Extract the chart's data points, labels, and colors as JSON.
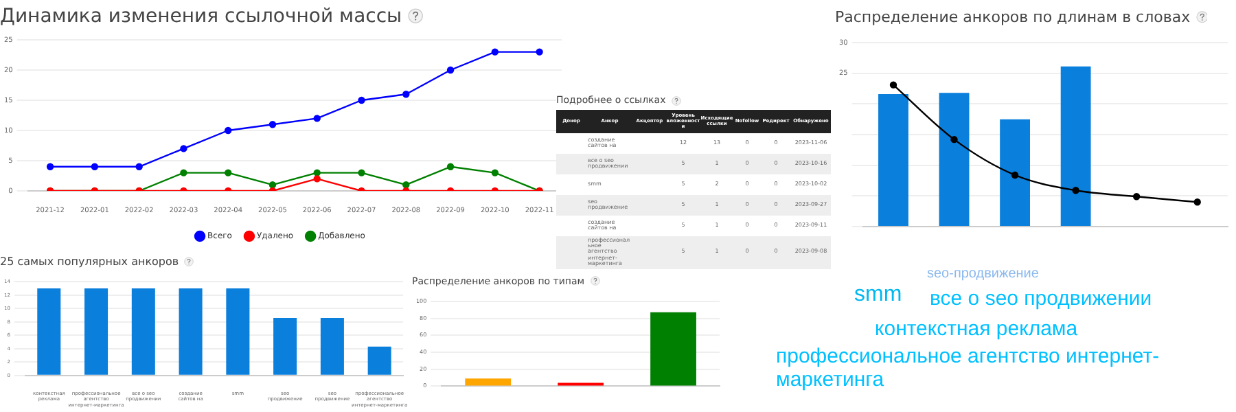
{
  "chart_data": [
    {
      "type": "line",
      "title": "Динамика изменения ссылочной массы",
      "categories": [
        "2021-12",
        "2022-01",
        "2022-02",
        "2022-03",
        "2022-04",
        "2022-05",
        "2022-06",
        "2022-07",
        "2022-08",
        "2022-09",
        "2022-10",
        "2022-11"
      ],
      "series": [
        {
          "name": "Всего",
          "color": "#0000ff",
          "values": [
            4,
            4,
            4,
            7,
            10,
            11,
            12,
            15,
            16,
            20,
            23,
            23
          ]
        },
        {
          "name": "Удалено",
          "color": "#ff0000",
          "values": [
            0,
            0,
            0,
            0,
            0,
            0,
            2,
            0,
            0,
            0,
            0,
            0
          ]
        },
        {
          "name": "Добавлено",
          "color": "#008000",
          "values": [
            0,
            0,
            0,
            3,
            3,
            1,
            3,
            3,
            1,
            4,
            3,
            0
          ]
        }
      ],
      "ylim": [
        0,
        25
      ],
      "yticks": [
        0,
        5,
        10,
        15,
        20,
        25
      ],
      "grid": "y",
      "legend": "bottom",
      "marker": "circle"
    },
    {
      "type": "bar",
      "title": "25 самых популярных анкоров",
      "categories": [
        "контекстная реклама",
        "профессиональное агентство интернет-маркетинга",
        "все о seo продвижении",
        "создание сайтов на",
        "smm",
        "seo продвижение",
        "seo продвижение",
        "профессиональное агентство интернет-маркетинга"
      ],
      "series": [
        {
          "color": "#0a7fdc",
          "values": [
            13,
            13,
            13,
            13,
            13,
            8.6,
            8.6,
            4.3
          ]
        }
      ],
      "ylim": [
        0,
        14
      ],
      "yticks": [
        0,
        2,
        4,
        6,
        8,
        10,
        12,
        14
      ],
      "grid": "y"
    },
    {
      "type": "bar",
      "title": "Распределение анкоров по типам",
      "categories": [
        null,
        null,
        null
      ],
      "series": [
        {
          "colors": [
            "#ffa500",
            "#ff0000",
            "#008000"
          ],
          "values": [
            9,
            4,
            87
          ]
        }
      ],
      "ylim": [
        0,
        100
      ],
      "yticks": [
        0,
        20,
        40,
        60,
        80,
        100
      ],
      "grid": "y"
    },
    {
      "type": "bar",
      "title": "Распределение анкоров по длинам в словах",
      "categories": [
        null,
        null,
        null,
        null,
        null,
        null
      ],
      "series": [
        {
          "type": "bar",
          "color": "#0a7fdc",
          "values": [
            21.6,
            21.8,
            17.5,
            26.1,
            null,
            null
          ]
        },
        {
          "type": "line",
          "color": "#000000",
          "values": [
            23.1,
            14.2,
            8.4,
            5.9,
            4.9,
            4.0
          ]
        }
      ],
      "ylim": [
        0,
        30
      ],
      "yticks": [
        {
          "value": 0,
          "label": null
        },
        {
          "value": 5,
          "label": null
        },
        {
          "value": 10,
          "label": null
        },
        {
          "value": 15,
          "label": null
        },
        {
          "value": 20,
          "label": null
        },
        25,
        30
      ],
      "grid": "y",
      "marker": "circle"
    },
    {
      "type": "other",
      "title": "Подробнее о ссылках",
      "categories": [
        "Донор",
        "Анкор",
        "Акцептор",
        "Уровень вложенности",
        "Исходящие ссылки",
        "Nofollow",
        "Редирект",
        "Обнаружено"
      ],
      "cell_labels": [
        [
          null,
          "создание сайтов на",
          null,
          "12",
          "13",
          "0",
          "0",
          "2023-11-06"
        ],
        [
          null,
          "все о seo продвижении",
          null,
          "5",
          "1",
          "0",
          "0",
          "2023-10-16"
        ],
        [
          null,
          "smm",
          null,
          "5",
          "2",
          "0",
          "0",
          "2023-10-02"
        ],
        [
          null,
          "seo продвижение",
          null,
          "5",
          "1",
          "0",
          "0",
          "2023-09-27"
        ],
        [
          null,
          "создание сайтов на",
          null,
          "5",
          "1",
          "0",
          "0",
          "2023-09-11"
        ],
        [
          null,
          "профессиональное агентство интернет-маркетинга",
          null,
          "5",
          "1",
          "0",
          "0",
          "2023-09-08"
        ]
      ]
    },
    {
      "type": "other",
      "annotations": [
        "seo-продвижение",
        "smm",
        "все о seo продвижении",
        "контекстная реклама",
        "профессиональное агентство интернет-маркетинга"
      ]
    }
  ]
}
